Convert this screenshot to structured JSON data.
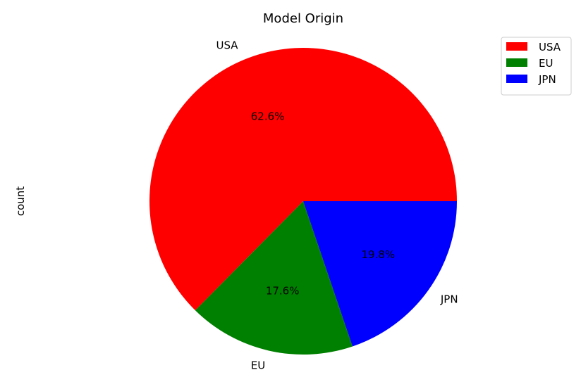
{
  "chart_data": {
    "type": "pie",
    "title": "Model Origin",
    "ylabel": "count",
    "categories": [
      "USA",
      "EU",
      "JPN"
    ],
    "values": [
      62.6,
      17.6,
      19.8
    ],
    "value_labels": [
      "62.6%",
      "17.6%",
      "19.8%"
    ],
    "colors": [
      "#ff0000",
      "#008000",
      "#0000ff"
    ],
    "legend": {
      "position": "top-right",
      "entries": [
        "USA",
        "EU",
        "JPN"
      ]
    }
  }
}
